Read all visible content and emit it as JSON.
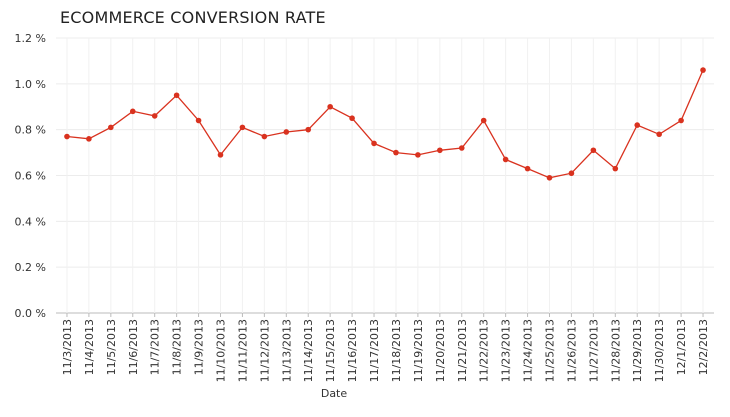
{
  "chart_data": {
    "type": "line",
    "title": "ECOMMERCE CONVERSION RATE",
    "xlabel": "Date",
    "ylabel": "",
    "ylim": [
      0,
      1.2
    ],
    "yticks": [
      "0.0 %",
      "0.2 %",
      "0.4 %",
      "0.6 %",
      "0.8 %",
      "1.0 %",
      "1.2 %"
    ],
    "ytick_values": [
      0,
      0.2,
      0.4,
      0.6,
      0.8,
      1.0,
      1.2
    ],
    "grid": true,
    "legend": "none",
    "line_color": "#d9321f",
    "categories": [
      "11/3/2013",
      "11/4/2013",
      "11/5/2013",
      "11/6/2013",
      "11/7/2013",
      "11/8/2013",
      "11/9/2013",
      "11/10/2013",
      "11/11/2013",
      "11/12/2013",
      "11/13/2013",
      "11/14/2013",
      "11/15/2013",
      "11/16/2013",
      "11/17/2013",
      "11/18/2013",
      "11/19/2013",
      "11/20/2013",
      "11/21/2013",
      "11/22/2013",
      "11/23/2013",
      "11/24/2013",
      "11/25/2013",
      "11/26/2013",
      "11/27/2013",
      "11/28/2013",
      "11/29/2013",
      "11/30/2013",
      "12/1/2013",
      "12/2/2013"
    ],
    "series": [
      {
        "values": [
          0.77,
          0.76,
          0.81,
          0.88,
          0.86,
          0.95,
          0.84,
          0.69,
          0.81,
          0.77,
          0.79,
          0.8,
          0.9,
          0.85,
          0.74,
          0.7,
          0.69,
          0.71,
          0.72,
          0.84,
          0.67,
          0.63,
          0.59,
          0.61,
          0.71,
          0.63,
          0.82,
          0.78,
          0.84,
          1.06
        ]
      }
    ]
  }
}
